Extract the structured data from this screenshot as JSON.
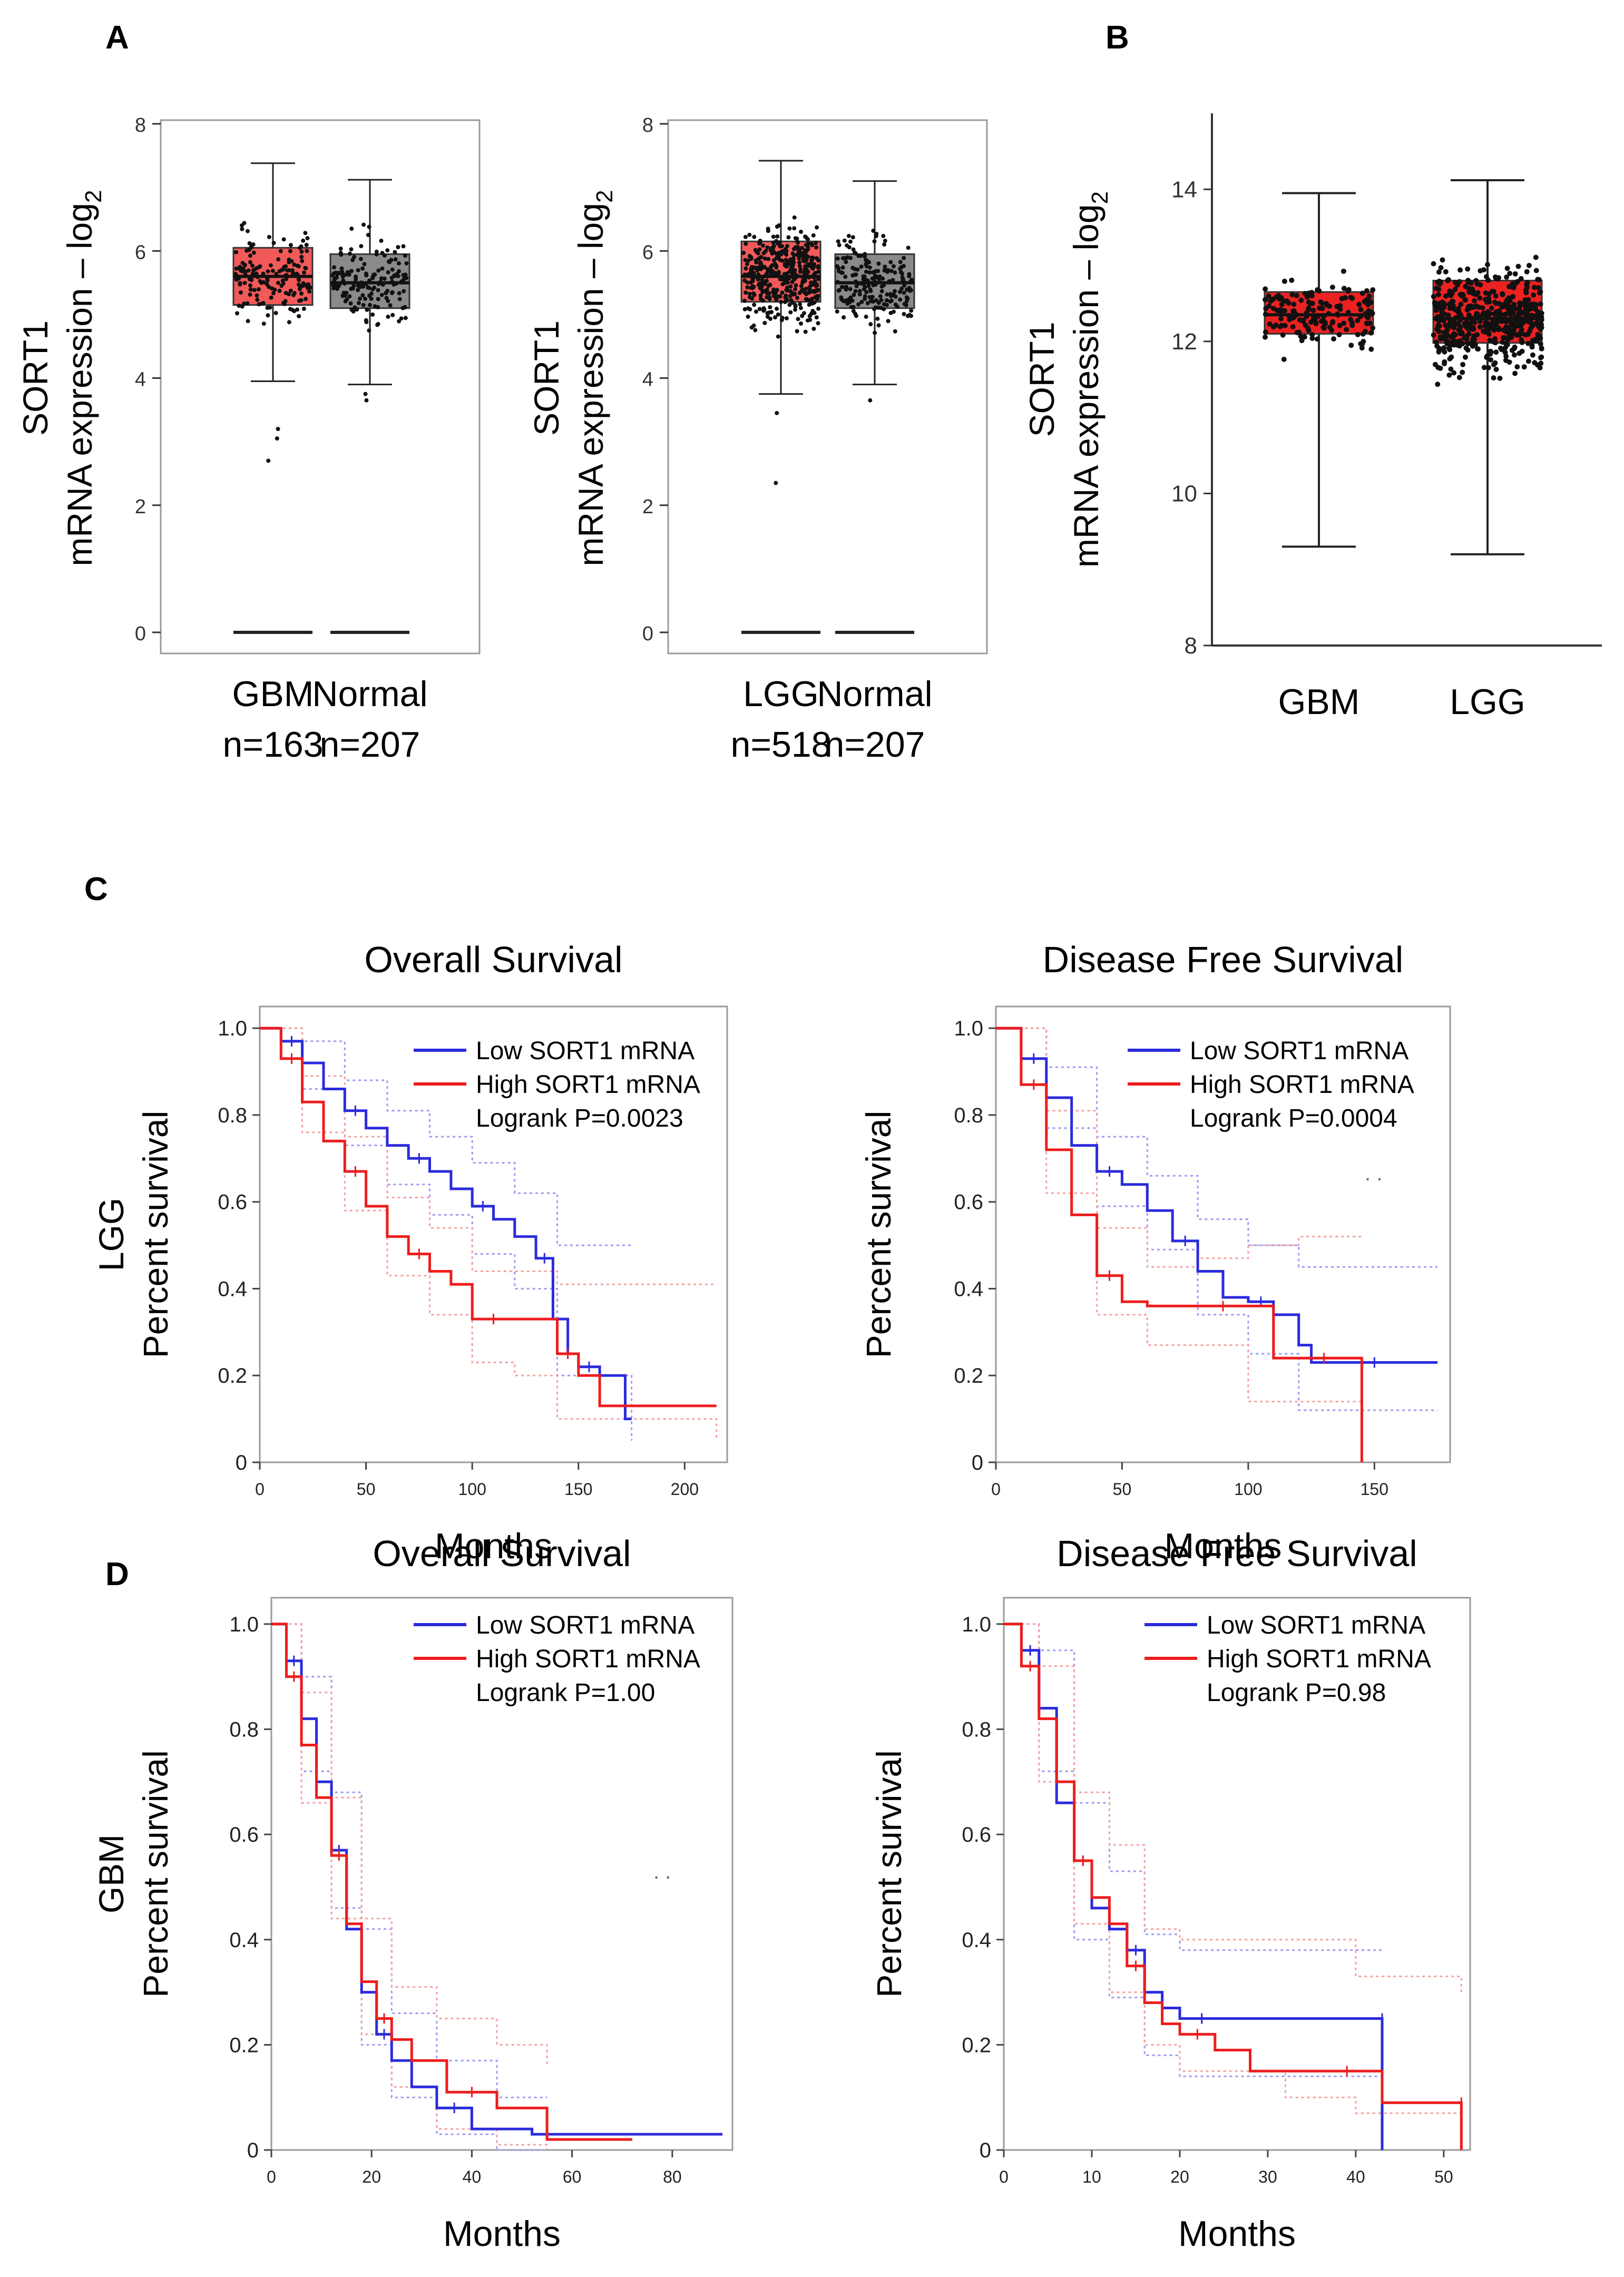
{
  "colors": {
    "red_box": "#f25a5a",
    "grey_box": "#8a8a8a",
    "red_box_b": "#ec2222",
    "low": "#2b2bdd",
    "high": "#ee1c1c",
    "low_ci": "#9a9af5",
    "high_ci": "#f5a0a0",
    "axis": "#333333",
    "frame": "#9a9a9a",
    "point": "#111111"
  },
  "panels": {
    "A": "A",
    "B": "B",
    "C": "C",
    "D": "D"
  },
  "chart_data": [
    {
      "id": "A1",
      "type": "box",
      "ylabel_line1": "SORT1",
      "ylabel_line2": "mRNA expression – log",
      "ylabel_sub": "2",
      "ylim": [
        0,
        8
      ],
      "yticks": [
        "0",
        "2",
        "4",
        "6",
        "8"
      ],
      "groups": [
        {
          "label": "GBM",
          "n_label": "n=163",
          "n": 163,
          "min": 3.95,
          "q1": 5.15,
          "median": 5.6,
          "q3": 6.05,
          "max": 7.38,
          "low_outliers": [
            3.2,
            3.05,
            2.7
          ],
          "fill": "red"
        },
        {
          "label": "Normal",
          "n_label": "n=207",
          "n": 207,
          "min": 3.9,
          "q1": 5.1,
          "median": 5.5,
          "q3": 5.95,
          "max": 7.12,
          "low_outliers": [
            3.75,
            3.65
          ],
          "fill": "grey"
        }
      ]
    },
    {
      "id": "A2",
      "type": "box",
      "ylabel_line1": "SORT1",
      "ylabel_line2": "mRNA expression – log",
      "ylabel_sub": "2",
      "ylim": [
        0,
        8
      ],
      "yticks": [
        "0",
        "2",
        "4",
        "6",
        "8"
      ],
      "groups": [
        {
          "label": "LGG",
          "n_label": "n=518",
          "n": 518,
          "min": 3.75,
          "q1": 5.2,
          "median": 5.6,
          "q3": 6.15,
          "max": 7.42,
          "low_outliers": [
            3.45,
            2.35
          ],
          "fill": "red"
        },
        {
          "label": "Normal",
          "n_label": "n=207",
          "n": 207,
          "min": 3.9,
          "q1": 5.1,
          "median": 5.5,
          "q3": 5.95,
          "max": 7.1,
          "low_outliers": [
            3.65
          ],
          "fill": "grey"
        }
      ]
    },
    {
      "id": "B",
      "type": "box",
      "ylabel_line1": "SORT1",
      "ylabel_line2": "mRNA expression – log",
      "ylabel_sub": "2",
      "ylim": [
        8,
        15
      ],
      "yticks": [
        "8",
        "10",
        "12",
        "14"
      ],
      "groups": [
        {
          "label": "GBM",
          "n": 163,
          "min": 9.3,
          "q1": 12.1,
          "median": 12.35,
          "q3": 12.65,
          "max": 13.95
        },
        {
          "label": "LGG",
          "n": 518,
          "min": 9.2,
          "q1": 11.98,
          "median": 12.3,
          "q3": 12.8,
          "max": 14.12
        }
      ]
    },
    {
      "id": "C1",
      "type": "line",
      "title": "Overall Survival",
      "row_label": "LGG",
      "ylabel": "Percent survival",
      "xlabel": "Months",
      "xlim": [
        0,
        220
      ],
      "ylim": [
        0,
        1.05
      ],
      "xticks": [
        "0",
        "50",
        "100",
        "150",
        "200"
      ],
      "yticks": [
        "0",
        "0.2",
        "0.4",
        "0.6",
        "0.8",
        "1.0"
      ],
      "legend": {
        "low": "Low SORT1 mRNA",
        "high": "High SORT1 mRNA",
        "stat": "Logrank P=0.0023"
      },
      "series": [
        {
          "name": "Low SORT1 mRNA",
          "color": "low",
          "x": [
            0,
            10,
            20,
            30,
            40,
            50,
            60,
            70,
            80,
            90,
            100,
            110,
            120,
            130,
            138,
            145,
            150,
            160,
            172,
            175
          ],
          "y": [
            1.0,
            0.97,
            0.92,
            0.86,
            0.81,
            0.77,
            0.73,
            0.7,
            0.67,
            0.63,
            0.59,
            0.56,
            0.52,
            0.47,
            0.33,
            0.25,
            0.22,
            0.2,
            0.1,
            0.1
          ]
        },
        {
          "name": "High SORT1 mRNA",
          "color": "high",
          "x": [
            0,
            10,
            20,
            30,
            40,
            50,
            60,
            70,
            80,
            90,
            100,
            120,
            135,
            140,
            150,
            160,
            215
          ],
          "y": [
            1.0,
            0.93,
            0.83,
            0.74,
            0.67,
            0.59,
            0.52,
            0.48,
            0.44,
            0.41,
            0.33,
            0.33,
            0.33,
            0.25,
            0.2,
            0.13,
            0.13
          ]
        }
      ],
      "ci": [
        {
          "color": "low_ci",
          "x": [
            0,
            20,
            40,
            60,
            80,
            100,
            120,
            140,
            175
          ],
          "upper": [
            1.0,
            0.97,
            0.88,
            0.81,
            0.75,
            0.69,
            0.62,
            0.5,
            0.5
          ],
          "lower": [
            1.0,
            0.86,
            0.73,
            0.64,
            0.57,
            0.48,
            0.4,
            0.2,
            0.05
          ]
        },
        {
          "color": "high_ci",
          "x": [
            0,
            20,
            40,
            60,
            80,
            100,
            120,
            140,
            215
          ],
          "upper": [
            1.0,
            0.89,
            0.75,
            0.61,
            0.54,
            0.44,
            0.44,
            0.41,
            0.41
          ],
          "lower": [
            1.0,
            0.76,
            0.58,
            0.43,
            0.34,
            0.23,
            0.2,
            0.1,
            0.05
          ]
        }
      ]
    },
    {
      "id": "C2",
      "type": "line",
      "title": "Disease Free Survival",
      "ylabel": "Percent survival",
      "xlabel": "Months",
      "xlim": [
        0,
        180
      ],
      "ylim": [
        0,
        1.05
      ],
      "xticks": [
        "0",
        "50",
        "100",
        "150"
      ],
      "yticks": [
        "0",
        "0.2",
        "0.4",
        "0.6",
        "0.8",
        "1.0"
      ],
      "legend": {
        "low": "Low SORT1 mRNA",
        "high": "High SORT1 mRNA",
        "stat": "Logrank P=0.0004"
      },
      "series": [
        {
          "name": "Low SORT1 mRNA",
          "color": "low",
          "x": [
            0,
            10,
            20,
            30,
            40,
            50,
            60,
            70,
            80,
            90,
            100,
            110,
            120,
            125,
            175
          ],
          "y": [
            1.0,
            0.93,
            0.84,
            0.73,
            0.67,
            0.64,
            0.58,
            0.51,
            0.44,
            0.38,
            0.37,
            0.34,
            0.27,
            0.23,
            0.23
          ]
        },
        {
          "name": "High SORT1 mRNA",
          "color": "high",
          "x": [
            0,
            10,
            20,
            30,
            40,
            50,
            60,
            80,
            100,
            110,
            120,
            140,
            145,
            145
          ],
          "y": [
            1.0,
            0.87,
            0.72,
            0.57,
            0.43,
            0.37,
            0.36,
            0.36,
            0.36,
            0.24,
            0.24,
            0.24,
            0.24,
            0.0
          ]
        }
      ],
      "ci": [
        {
          "color": "low_ci",
          "x": [
            0,
            20,
            40,
            60,
            80,
            100,
            120,
            175
          ],
          "upper": [
            1.0,
            0.91,
            0.75,
            0.66,
            0.56,
            0.5,
            0.45,
            0.45
          ],
          "lower": [
            1.0,
            0.77,
            0.59,
            0.49,
            0.34,
            0.25,
            0.12,
            0.12
          ]
        },
        {
          "color": "high_ci",
          "x": [
            0,
            20,
            40,
            60,
            80,
            100,
            120,
            145
          ],
          "upper": [
            1.0,
            0.81,
            0.54,
            0.45,
            0.47,
            0.5,
            0.52,
            0.52
          ],
          "lower": [
            1.0,
            0.62,
            0.34,
            0.27,
            0.27,
            0.14,
            0.14,
            0.14
          ]
        }
      ],
      "annotation": ". ."
    },
    {
      "id": "D1",
      "type": "line",
      "title": "Overall Survival",
      "row_label": "GBM",
      "ylabel": "Percent survival",
      "xlabel": "Months",
      "xlim": [
        0,
        92
      ],
      "ylim": [
        0,
        1.05
      ],
      "xticks": [
        "0",
        "20",
        "40",
        "60",
        "80"
      ],
      "yticks": [
        "0",
        "0.2",
        "0.4",
        "0.6",
        "0.8",
        "1.0"
      ],
      "legend": {
        "low": "Low SORT1 mRNA",
        "high": "High SORT1 mRNA",
        "stat": "Logrank P=1.00"
      },
      "series": [
        {
          "name": "Low SORT1 mRNA",
          "color": "low",
          "x": [
            0,
            3,
            6,
            9,
            12,
            15,
            18,
            21,
            24,
            28,
            33,
            40,
            52,
            90
          ],
          "y": [
            1.0,
            0.93,
            0.82,
            0.7,
            0.57,
            0.42,
            0.3,
            0.22,
            0.17,
            0.12,
            0.08,
            0.04,
            0.03,
            0.03
          ]
        },
        {
          "name": "High SORT1 mRNA",
          "color": "high",
          "x": [
            0,
            3,
            6,
            9,
            12,
            15,
            18,
            21,
            24,
            28,
            35,
            45,
            55,
            72
          ],
          "y": [
            1.0,
            0.9,
            0.77,
            0.67,
            0.56,
            0.43,
            0.32,
            0.25,
            0.21,
            0.17,
            0.11,
            0.08,
            0.02,
            0.02
          ]
        }
      ],
      "ci": [
        {
          "color": "low_ci",
          "x": [
            0,
            6,
            12,
            18,
            24,
            33,
            45,
            55
          ],
          "upper": [
            1.0,
            0.9,
            0.68,
            0.42,
            0.26,
            0.17,
            0.1,
            0.1
          ],
          "lower": [
            1.0,
            0.72,
            0.46,
            0.2,
            0.1,
            0.03,
            0.0,
            0.0
          ]
        },
        {
          "color": "high_ci",
          "x": [
            0,
            6,
            12,
            18,
            24,
            33,
            45,
            55
          ],
          "upper": [
            1.0,
            0.87,
            0.67,
            0.44,
            0.31,
            0.25,
            0.2,
            0.16
          ],
          "lower": [
            1.0,
            0.66,
            0.44,
            0.22,
            0.12,
            0.04,
            0.01,
            0.0
          ]
        }
      ],
      "annotation": ". ."
    },
    {
      "id": "D2",
      "type": "line",
      "title": "Disease Free Survival",
      "ylabel": "Percent survival",
      "xlabel": "Months",
      "xlim": [
        0,
        53
      ],
      "ylim": [
        0,
        1.05
      ],
      "xticks": [
        "0",
        "10",
        "20",
        "30",
        "40",
        "50"
      ],
      "yticks": [
        "0",
        "0.2",
        "0.4",
        "0.6",
        "0.8",
        "1.0"
      ],
      "legend": {
        "low": "Low SORT1 mRNA",
        "high": "High SORT1 mRNA",
        "stat": "Logrank P=0.98"
      },
      "series": [
        {
          "name": "Low SORT1 mRNA",
          "color": "low",
          "x": [
            0,
            2,
            4,
            6,
            8,
            10,
            12,
            14,
            16,
            18,
            20,
            25,
            30,
            43,
            43
          ],
          "y": [
            1.0,
            0.95,
            0.84,
            0.66,
            0.55,
            0.46,
            0.42,
            0.38,
            0.3,
            0.27,
            0.25,
            0.25,
            0.25,
            0.25,
            0.0
          ]
        },
        {
          "name": "High SORT1 mRNA",
          "color": "high",
          "x": [
            0,
            2,
            4,
            6,
            8,
            10,
            12,
            14,
            16,
            18,
            20,
            24,
            28,
            35,
            43,
            49,
            52,
            52
          ],
          "y": [
            1.0,
            0.92,
            0.82,
            0.7,
            0.55,
            0.48,
            0.43,
            0.35,
            0.28,
            0.24,
            0.22,
            0.19,
            0.15,
            0.15,
            0.09,
            0.09,
            0.09,
            0.0
          ]
        }
      ],
      "ci": [
        {
          "color": "low_ci",
          "x": [
            0,
            4,
            8,
            12,
            16,
            20,
            30,
            43
          ],
          "upper": [
            1.0,
            0.95,
            0.66,
            0.53,
            0.41,
            0.38,
            0.38,
            0.38
          ],
          "lower": [
            1.0,
            0.72,
            0.4,
            0.29,
            0.18,
            0.14,
            0.14,
            0.14
          ]
        },
        {
          "color": "high_ci",
          "x": [
            0,
            4,
            8,
            12,
            16,
            20,
            32,
            40,
            52
          ],
          "upper": [
            1.0,
            0.92,
            0.68,
            0.58,
            0.42,
            0.4,
            0.4,
            0.33,
            0.3
          ],
          "lower": [
            1.0,
            0.7,
            0.43,
            0.3,
            0.2,
            0.15,
            0.1,
            0.07,
            0.05
          ]
        }
      ]
    }
  ]
}
